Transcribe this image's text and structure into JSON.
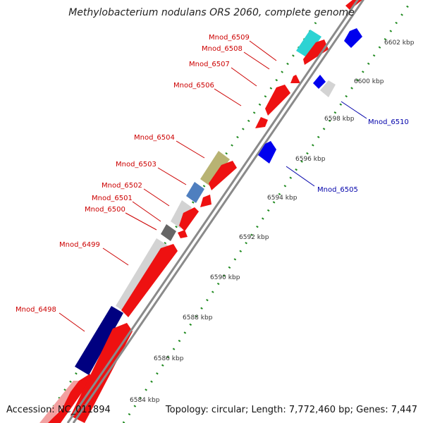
{
  "title": "Methylobacterium nodulans ORS 2060, complete genome",
  "footer": {
    "accession": "Accession: NC_011894",
    "summary": "Topology: circular; Length: 7,772,460 bp; Genes: 7,447"
  },
  "colors": {
    "backbone": "#8a8a8a",
    "forward_gene": "#ff0000",
    "reverse_gene": "#0000ee",
    "forward_label": "#cc0000",
    "reverse_label": "#0000aa",
    "tick_dots": "#1f8a1f",
    "tick_label": "#333333"
  },
  "ticks": [
    {
      "label": "6584 kbp"
    },
    {
      "label": "6586 kbp"
    },
    {
      "label": "6588 kbp"
    },
    {
      "label": "6590 kbp"
    },
    {
      "label": "6592 kbp"
    },
    {
      "label": "6594 kbp"
    },
    {
      "label": "6596 kbp"
    },
    {
      "label": "6598 kbp"
    },
    {
      "label": "6600 kbp"
    },
    {
      "label": "6602 kbp"
    }
  ],
  "genes": [
    {
      "label": "Mnod_6498",
      "strand": "forward"
    },
    {
      "label": "Mnod_6499",
      "strand": "forward"
    },
    {
      "label": "Mnod_6500",
      "strand": "forward"
    },
    {
      "label": "Mnod_6501",
      "strand": "forward"
    },
    {
      "label": "Mnod_6502",
      "strand": "forward"
    },
    {
      "label": "Mnod_6503",
      "strand": "forward"
    },
    {
      "label": "Mnod_6504",
      "strand": "forward"
    },
    {
      "label": "Mnod_6505",
      "strand": "reverse"
    },
    {
      "label": "Mnod_6506",
      "strand": "forward"
    },
    {
      "label": "Mnod_6507",
      "strand": "forward"
    },
    {
      "label": "Mnod_6508",
      "strand": "forward"
    },
    {
      "label": "Mnod_6509",
      "strand": "forward"
    },
    {
      "label": "Mnod_6510",
      "strand": "reverse"
    }
  ]
}
